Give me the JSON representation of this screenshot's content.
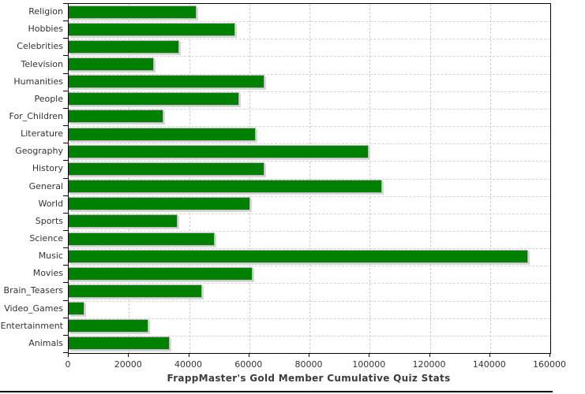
{
  "chart_data": {
    "type": "bar",
    "orientation": "horizontal",
    "title": "FrappMaster's Gold Member Cumulative Quiz Stats",
    "categories": [
      "Religion",
      "Hobbies",
      "Celebrities",
      "Television",
      "Humanities",
      "People",
      "For_Children",
      "Literature",
      "Geography",
      "History",
      "General",
      "World",
      "Sports",
      "Science",
      "Music",
      "Movies",
      "Brain_Teasers",
      "Video_Games",
      "Entertainment",
      "Animals"
    ],
    "values": [
      42500,
      55400,
      36800,
      28200,
      65100,
      56700,
      31600,
      62200,
      99600,
      65100,
      104200,
      60400,
      36200,
      48500,
      152700,
      61200,
      44300,
      5300,
      26500,
      33500
    ],
    "xlabel": "",
    "ylabel": "",
    "xlim": [
      0,
      160000
    ],
    "x_ticks": [
      0,
      20000,
      40000,
      60000,
      80000,
      100000,
      120000,
      140000,
      160000
    ],
    "grid": "dashed",
    "legend": "none",
    "bar_color": "#008000",
    "bar_border_color": "#b8b8b8",
    "bar_shadow_color": "#d8d8d8",
    "gridline_color": "#cccccc",
    "axis_color": "#000000",
    "tick_label_color": "#333333",
    "title_color": "#3c3c3c"
  }
}
